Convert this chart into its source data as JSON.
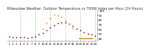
{
  "title": "Milwaukee Weather  Outdoor Temperature vs THSW Index per Hour (24 Hours)",
  "title_fontsize": 3.5,
  "background_color": "#ffffff",
  "plot_bg_color": "#ffffff",
  "grid_color": "#aaaaaa",
  "hours": [
    1,
    2,
    3,
    4,
    5,
    6,
    7,
    8,
    9,
    10,
    11,
    12,
    13,
    14,
    15,
    16,
    17,
    18,
    19,
    20,
    21,
    22,
    23,
    24
  ],
  "temp_values": [
    44,
    43,
    43,
    42,
    42,
    41,
    42,
    44,
    48,
    52,
    57,
    63,
    68,
    72,
    74,
    73,
    70,
    66,
    61,
    57,
    53,
    50,
    48,
    46
  ],
  "thsw_values": [
    null,
    null,
    null,
    null,
    null,
    null,
    null,
    null,
    50,
    60,
    72,
    82,
    90,
    88,
    85,
    78,
    70,
    62,
    null,
    null,
    null,
    null,
    null,
    null
  ],
  "temp_color": "#aa0000",
  "thsw_color": "#ff8800",
  "marker_size": 1.8,
  "ylim": [
    35,
    100
  ],
  "yticks": [
    40,
    50,
    60,
    70,
    80,
    90,
    100
  ],
  "ytick_labels": [
    "40",
    "50",
    "60",
    "70",
    "80",
    "90",
    "100"
  ],
  "ylabel_fontsize": 3.2,
  "xlabel_fontsize": 2.8,
  "legend_line_color": "#ff8800",
  "legend_fontsize": 3.0,
  "vgrid_positions": [
    4,
    8,
    12,
    16,
    20,
    24
  ]
}
